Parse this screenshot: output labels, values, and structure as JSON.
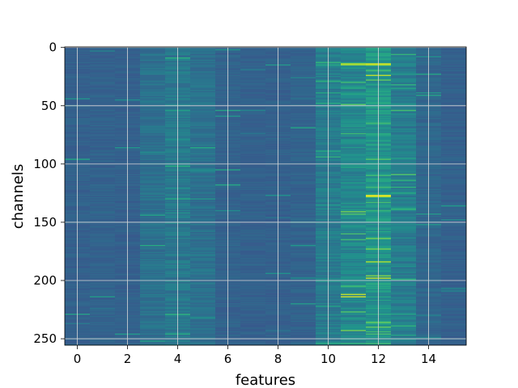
{
  "chart_data": {
    "type": "heatmap",
    "title": "",
    "xlabel": "features",
    "ylabel": "channels",
    "x_ticks": [
      0,
      2,
      4,
      6,
      8,
      10,
      12,
      14
    ],
    "y_ticks": [
      0,
      50,
      100,
      150,
      200,
      250
    ],
    "xlim": [
      -0.5,
      15.5
    ],
    "ylim": [
      255.5,
      -0.5
    ],
    "n_features": 16,
    "n_channels": 256,
    "grid": true,
    "colormap": "viridis",
    "background_value_color": "#3b4f8a",
    "column_mean_intensity": [
      0.12,
      0.13,
      0.12,
      0.2,
      0.24,
      0.2,
      0.13,
      0.12,
      0.12,
      0.13,
      0.26,
      0.32,
      0.38,
      0.26,
      0.15,
      0.12
    ],
    "hot_cells": [
      {
        "feature": 11,
        "channel": 14,
        "value": 0.85
      },
      {
        "feature": 11,
        "channel": 15,
        "value": 0.8
      },
      {
        "feature": 12,
        "channel": 14,
        "value": 0.9
      },
      {
        "feature": 12,
        "channel": 15,
        "value": 0.85
      },
      {
        "feature": 12,
        "channel": 24,
        "value": 0.88
      },
      {
        "feature": 11,
        "channel": 30,
        "value": 0.6
      },
      {
        "feature": 10,
        "channel": 29,
        "value": 0.55
      },
      {
        "feature": 12,
        "channel": 65,
        "value": 0.6
      },
      {
        "feature": 10,
        "channel": 94,
        "value": 0.55
      },
      {
        "feature": 12,
        "channel": 110,
        "value": 0.6
      },
      {
        "feature": 12,
        "channel": 127,
        "value": 0.95
      },
      {
        "feature": 12,
        "channel": 128,
        "value": 0.9
      },
      {
        "feature": 4,
        "channel": 130,
        "value": 0.5
      },
      {
        "feature": 13,
        "channel": 120,
        "value": 0.55
      },
      {
        "feature": 11,
        "channel": 165,
        "value": 0.6
      },
      {
        "feature": 3,
        "channel": 170,
        "value": 0.5
      },
      {
        "feature": 12,
        "channel": 184,
        "value": 0.85
      },
      {
        "feature": 12,
        "channel": 196,
        "value": 0.75
      },
      {
        "feature": 12,
        "channel": 198,
        "value": 0.9
      },
      {
        "feature": 13,
        "channel": 199,
        "value": 0.55
      },
      {
        "feature": 11,
        "channel": 205,
        "value": 0.6
      },
      {
        "feature": 11,
        "channel": 212,
        "value": 0.88
      },
      {
        "feature": 11,
        "channel": 214,
        "value": 0.92
      },
      {
        "feature": 12,
        "channel": 236,
        "value": 0.7
      },
      {
        "feature": 12,
        "channel": 254,
        "value": 0.6
      }
    ]
  }
}
